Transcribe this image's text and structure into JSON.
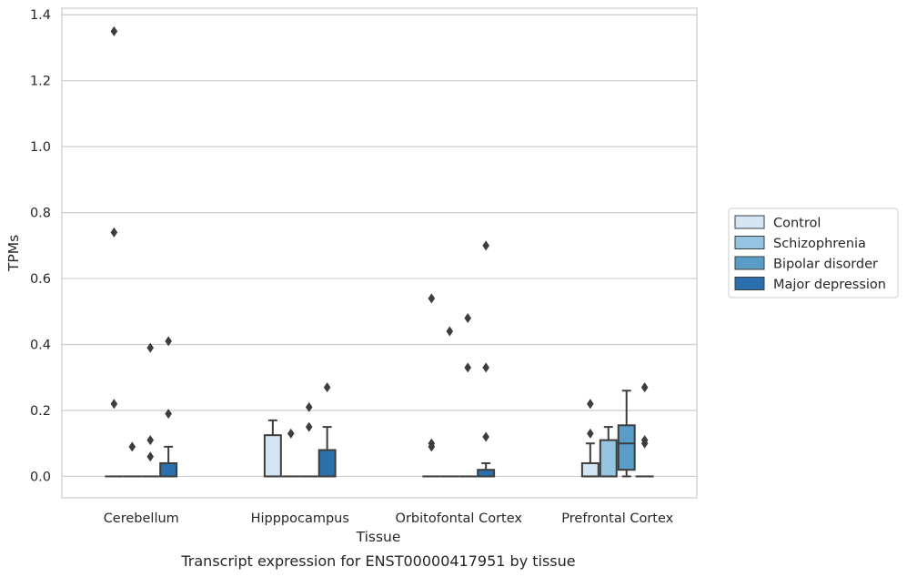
{
  "caption": "Transcript expression for ENST00000417951 by tissue",
  "chart_data": {
    "type": "box",
    "xlabel": "Tissue",
    "ylabel": "TPMs",
    "ylim": [
      -0.065,
      1.42
    ],
    "yticks": [
      0.0,
      0.2,
      0.4,
      0.6,
      0.8,
      1.0,
      1.2,
      1.4
    ],
    "ytick_labels": [
      "0.0",
      "0.2",
      "0.4",
      "0.6",
      "0.8",
      "1.0",
      "1.2",
      "1.4"
    ],
    "grid": "horizontal",
    "legend_position": "right",
    "categories": [
      "Cerebellum",
      "Hipppocampus",
      "Orbitofontal Cortex",
      "Prefrontal Cortex"
    ],
    "series": [
      {
        "name": "Control",
        "color": "#d3e4f3",
        "boxes": [
          {
            "q1": 0,
            "median": 0,
            "q3": 0,
            "whislo": 0,
            "whishi": 0,
            "fliers": [
              1.35,
              0.74,
              0.22
            ]
          },
          {
            "q1": 0,
            "median": 0,
            "q3": 0.125,
            "whislo": 0,
            "whishi": 0.17,
            "fliers": []
          },
          {
            "q1": 0,
            "median": 0,
            "q3": 0,
            "whislo": 0,
            "whishi": 0,
            "fliers": [
              0.54,
              0.1,
              0.09
            ]
          },
          {
            "q1": 0,
            "median": 0,
            "q3": 0.04,
            "whislo": 0,
            "whishi": 0.1,
            "fliers": [
              0.22,
              0.13
            ]
          }
        ]
      },
      {
        "name": "Schizophrenia",
        "color": "#94c4df",
        "boxes": [
          {
            "q1": 0,
            "median": 0,
            "q3": 0,
            "whislo": 0,
            "whishi": 0,
            "fliers": [
              0.09
            ]
          },
          {
            "q1": 0,
            "median": 0,
            "q3": 0,
            "whislo": 0,
            "whishi": 0,
            "fliers": [
              0.13
            ]
          },
          {
            "q1": 0,
            "median": 0,
            "q3": 0,
            "whislo": 0,
            "whishi": 0,
            "fliers": [
              0.44
            ]
          },
          {
            "q1": 0,
            "median": 0,
            "q3": 0.11,
            "whislo": 0,
            "whishi": 0.15,
            "fliers": []
          }
        ]
      },
      {
        "name": "Bipolar disorder",
        "color": "#5a9dc8",
        "boxes": [
          {
            "q1": 0,
            "median": 0,
            "q3": 0,
            "whislo": 0,
            "whishi": 0,
            "fliers": [
              0.39,
              0.11,
              0.06
            ]
          },
          {
            "q1": 0,
            "median": 0,
            "q3": 0,
            "whislo": 0,
            "whishi": 0,
            "fliers": [
              0.21,
              0.15
            ]
          },
          {
            "q1": 0,
            "median": 0,
            "q3": 0,
            "whislo": 0,
            "whishi": 0,
            "fliers": [
              0.48,
              0.33
            ]
          },
          {
            "q1": 0.02,
            "median": 0.1,
            "q3": 0.155,
            "whislo": 0,
            "whishi": 0.26,
            "fliers": []
          }
        ]
      },
      {
        "name": "Major depression",
        "color": "#2c6fad",
        "boxes": [
          {
            "q1": 0,
            "median": 0,
            "q3": 0.04,
            "whislo": 0,
            "whishi": 0.09,
            "fliers": [
              0.41,
              0.19
            ]
          },
          {
            "q1": 0,
            "median": 0,
            "q3": 0.08,
            "whislo": 0,
            "whishi": 0.15,
            "fliers": [
              0.27
            ]
          },
          {
            "q1": 0,
            "median": 0,
            "q3": 0.02,
            "whislo": 0,
            "whishi": 0.04,
            "fliers": [
              0.7,
              0.33,
              0.12
            ]
          },
          {
            "q1": 0,
            "median": 0,
            "q3": 0,
            "whislo": 0,
            "whishi": 0,
            "fliers": [
              0.27,
              0.11,
              0.1
            ]
          }
        ]
      }
    ]
  }
}
